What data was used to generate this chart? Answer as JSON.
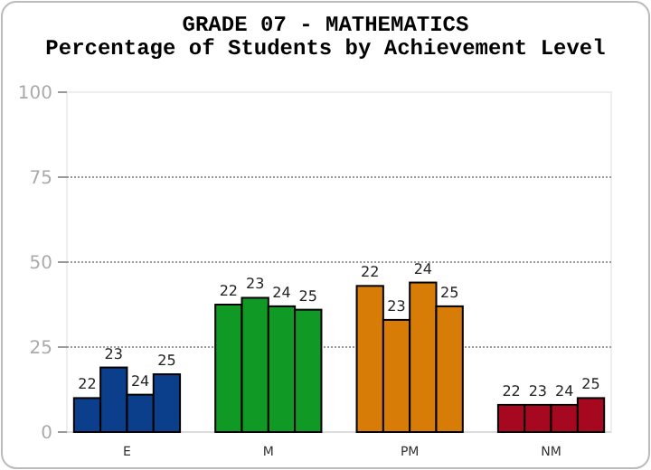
{
  "chart_data": {
    "type": "bar",
    "title": "GRADE 07 - MATHEMATICS",
    "subtitle": "Percentage of Students by Achievement Level",
    "categories": [
      "E",
      "M",
      "PM",
      "NM"
    ],
    "series": [
      {
        "name": "22",
        "colors": [
          "#0b3f8b",
          "#109a25",
          "#d67c07",
          "#a6081f"
        ],
        "values": [
          10,
          37.5,
          43,
          8
        ]
      },
      {
        "name": "23",
        "colors": [
          "#0b3f8b",
          "#109a25",
          "#d67c07",
          "#a6081f"
        ],
        "values": [
          19,
          39.5,
          33,
          8
        ]
      },
      {
        "name": "24",
        "colors": [
          "#0b3f8b",
          "#109a25",
          "#d67c07",
          "#a6081f"
        ],
        "values": [
          11,
          37,
          44,
          8
        ]
      },
      {
        "name": "25",
        "colors": [
          "#0b3f8b",
          "#109a25",
          "#d67c07",
          "#a6081f"
        ],
        "values": [
          17,
          36,
          37,
          10
        ]
      }
    ],
    "ylim": [
      0,
      100
    ],
    "yticks": [
      0,
      25,
      50,
      75,
      100
    ],
    "grid": "y"
  }
}
